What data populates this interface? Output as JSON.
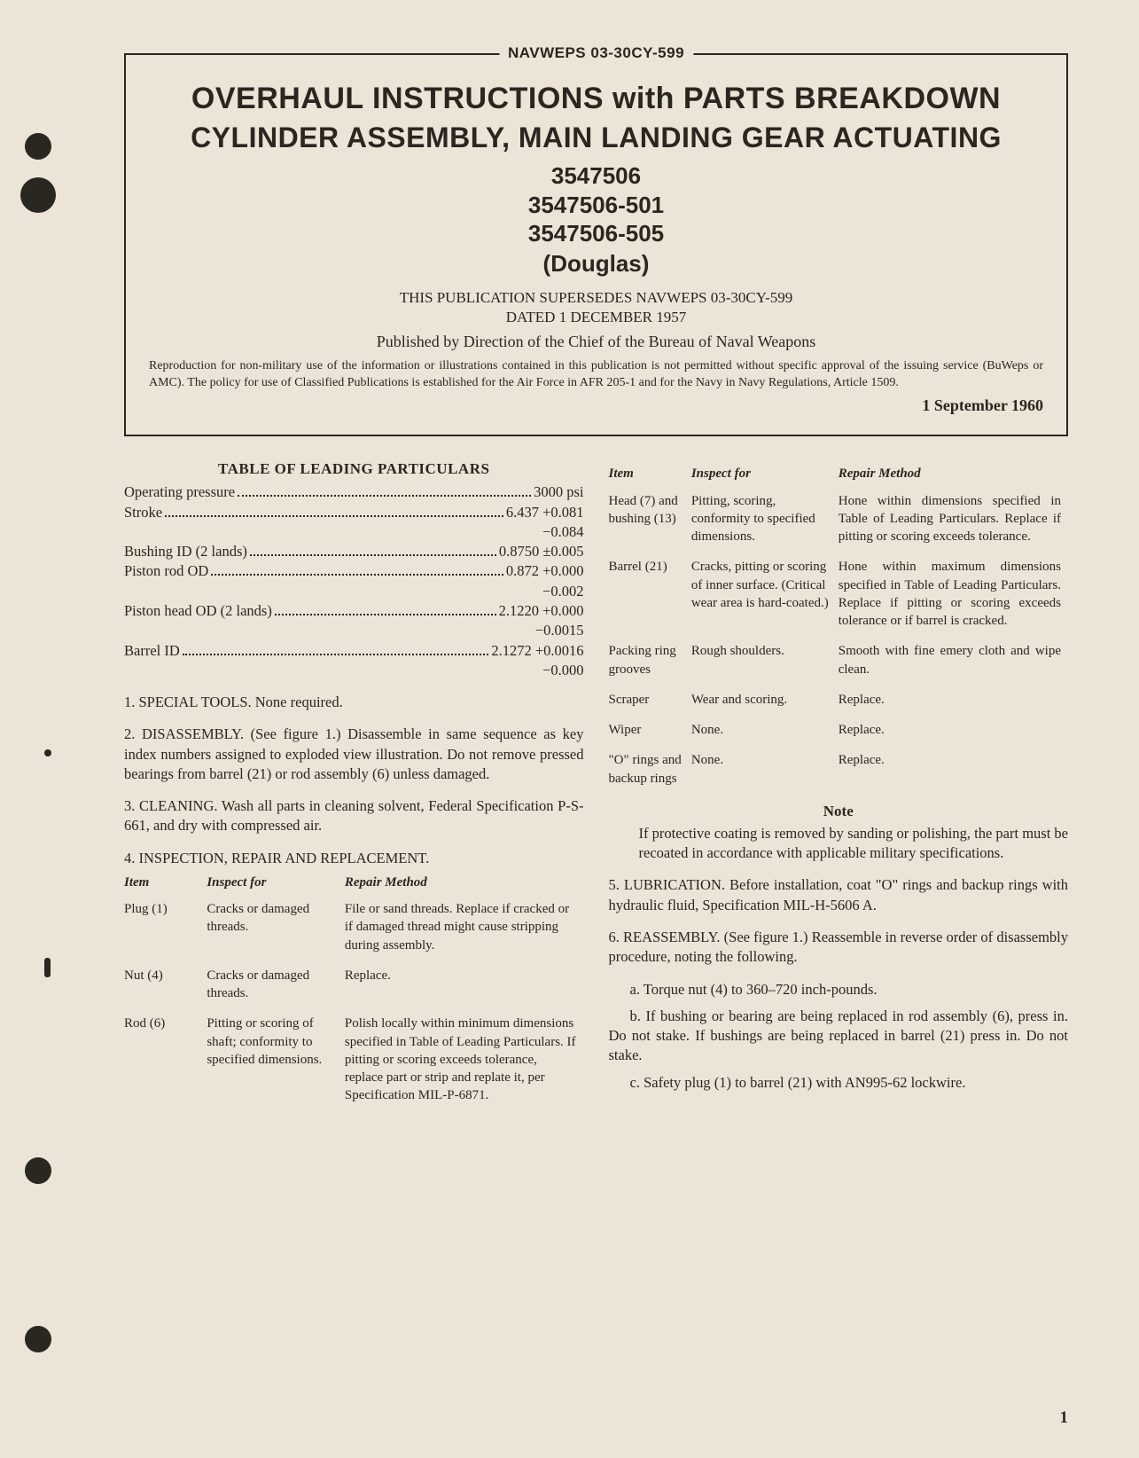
{
  "header": {
    "doc_code": "NAVWEPS 03-30CY-599",
    "title_line1_a": "OVERHAUL INSTRUCTIONS",
    "title_line1_b": "with",
    "title_line1_c": "PARTS BREAKDOWN",
    "title_line2": "CYLINDER ASSEMBLY, MAIN LANDING GEAR ACTUATING",
    "part_numbers": [
      "3547506",
      "3547506-501",
      "3547506-505"
    ],
    "manufacturer": "(Douglas)",
    "supersedes_line1": "THIS PUBLICATION SUPERSEDES NAVWEPS 03-30CY-599",
    "supersedes_line2": "DATED 1 DECEMBER 1957",
    "published_by": "Published by Direction of the Chief of the Bureau of Naval Weapons",
    "repro_note": "Reproduction for non-military use of the information or illustrations contained in this publication is not permitted without specific approval of the issuing service (BuWeps or AMC). The policy for use of Classified Publications is established for the Air Force in AFR 205-1 and for the Navy in Navy Regulations, Article 1509.",
    "pub_date": "1 September 1960"
  },
  "tlp": {
    "title": "TABLE OF LEADING PARTICULARS",
    "rows": [
      {
        "label": "Operating pressure",
        "value": "3000 psi",
        "tol": ""
      },
      {
        "label": "Stroke",
        "value": "6.437 +0.081",
        "tol": "−0.084"
      },
      {
        "label": "Bushing ID (2 lands)",
        "value": "0.8750 ±0.005",
        "tol": ""
      },
      {
        "label": "Piston rod OD",
        "value": "0.872 +0.000",
        "tol": "−0.002"
      },
      {
        "label": "Piston head OD (2 lands)",
        "value": "2.1220 +0.000",
        "tol": "−0.0015"
      },
      {
        "label": "Barrel ID",
        "value": "2.1272 +0.0016",
        "tol": "−0.000"
      }
    ]
  },
  "paras": {
    "p1": "1. SPECIAL TOOLS. None required.",
    "p2": "2. DISASSEMBLY. (See figure 1.) Disassemble in same sequence as key index numbers assigned to exploded view illustration. Do not remove pressed bearings from barrel (21) or rod assembly (6) unless damaged.",
    "p3": "3. CLEANING. Wash all parts in cleaning solvent, Federal Specification P-S-661, and dry with compressed air.",
    "p4": "4. INSPECTION, REPAIR AND REPLACEMENT.",
    "p5": "5. LUBRICATION. Before installation, coat \"O\" rings and backup rings with hydraulic fluid, Specification MIL-H-5606 A.",
    "p6": "6. REASSEMBLY. (See figure 1.) Reassemble in reverse order of disassembly procedure, noting the following.",
    "p6a": "a. Torque nut (4) to 360–720 inch-pounds.",
    "p6b": "b. If bushing or bearing are being replaced in rod assembly (6), press in. Do not stake. If bushings are being replaced in barrel (21) press in. Do not stake.",
    "p6c": "c. Safety plug (1) to barrel (21) with AN995-62 lockwire."
  },
  "insp_headers": {
    "h1": "Item",
    "h2": "Inspect for",
    "h3": "Repair Method"
  },
  "insp_left": [
    {
      "item": "Plug (1)",
      "inspect": "Cracks or damaged threads.",
      "repair": "File or sand threads. Replace if cracked or if damaged thread might cause stripping during assembly."
    },
    {
      "item": "Nut (4)",
      "inspect": "Cracks or damaged threads.",
      "repair": "Replace."
    },
    {
      "item": "Rod (6)",
      "inspect": "Pitting or scoring of shaft; conformity to specified dimensions.",
      "repair": "Polish locally within minimum dimensions specified in Table of Leading Particulars. If pitting or scoring exceeds tolerance, replace part or strip and replate it, per Specification MIL-P-6871."
    }
  ],
  "insp_right": [
    {
      "item": "Head (7) and bushing (13)",
      "inspect": "Pitting, scoring, conformity to specified dimensions.",
      "repair": "Hone within dimensions specified in Table of Leading Particulars. Replace if pitting or scoring exceeds tolerance."
    },
    {
      "item": "Barrel (21)",
      "inspect": "Cracks, pitting or scoring of inner surface. (Critical wear area is hard-coated.)",
      "repair": "Hone within maximum dimensions specified in Table of Leading Particulars. Replace if pitting or scoring exceeds tolerance or if barrel is cracked."
    },
    {
      "item": "Packing ring grooves",
      "inspect": "Rough shoulders.",
      "repair": "Smooth with fine emery cloth and wipe clean."
    },
    {
      "item": "Scraper",
      "inspect": "Wear and scoring.",
      "repair": "Replace."
    },
    {
      "item": "Wiper",
      "inspect": "None.",
      "repair": "Replace."
    },
    {
      "item": "\"O\" rings and backup rings",
      "inspect": "None.",
      "repair": "Replace."
    }
  ],
  "note": {
    "head": "Note",
    "body": "If protective coating is removed by sanding or polishing, the part must be recoated in accordance with applicable military specifications."
  },
  "page_number": "1"
}
